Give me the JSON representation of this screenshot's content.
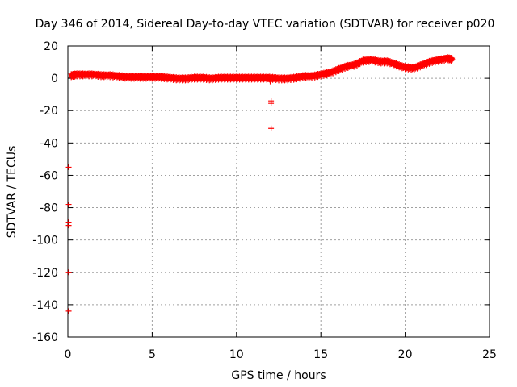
{
  "chart_data": {
    "type": "scatter",
    "title": "Day 346 of 2014, Sidereal Day-to-day VTEC variation (SDTVAR) for receiver p020",
    "xlabel": "GPS time / hours",
    "ylabel": "SDTVAR / TECUs",
    "xlim": [
      0,
      25
    ],
    "ylim": [
      -160,
      20
    ],
    "xticks": [
      0,
      5,
      10,
      15,
      20,
      25
    ],
    "yticks": [
      -160,
      -140,
      -120,
      -100,
      -80,
      -60,
      -40,
      -20,
      0,
      20
    ],
    "grid": true,
    "marker": "+",
    "color": "#ff0000",
    "series": [
      {
        "name": "SDTVAR",
        "trend": [
          [
            0.2,
            1.5
          ],
          [
            0.5,
            2.0
          ],
          [
            1.0,
            2.0
          ],
          [
            1.5,
            2.0
          ],
          [
            2.0,
            1.5
          ],
          [
            2.5,
            1.5
          ],
          [
            3.0,
            1.0
          ],
          [
            3.5,
            0.5
          ],
          [
            4.0,
            0.5
          ],
          [
            4.5,
            0.5
          ],
          [
            5.0,
            0.5
          ],
          [
            5.5,
            0.5
          ],
          [
            6.0,
            0.0
          ],
          [
            6.5,
            -0.5
          ],
          [
            7.0,
            -0.5
          ],
          [
            7.5,
            0.0
          ],
          [
            8.0,
            0.0
          ],
          [
            8.5,
            -0.5
          ],
          [
            9.0,
            0.0
          ],
          [
            9.5,
            0.0
          ],
          [
            10.0,
            0.0
          ],
          [
            10.5,
            0.0
          ],
          [
            11.0,
            0.0
          ],
          [
            11.5,
            0.0
          ],
          [
            12.0,
            0.0
          ],
          [
            12.5,
            -0.5
          ],
          [
            13.0,
            -0.5
          ],
          [
            13.5,
            0.0
          ],
          [
            14.0,
            1.0
          ],
          [
            14.5,
            1.0
          ],
          [
            15.0,
            2.0
          ],
          [
            15.5,
            3.0
          ],
          [
            16.0,
            5.0
          ],
          [
            16.5,
            7.0
          ],
          [
            17.0,
            8.0
          ],
          [
            17.5,
            10.5
          ],
          [
            18.0,
            11.0
          ],
          [
            18.5,
            10.0
          ],
          [
            19.0,
            10.0
          ],
          [
            19.5,
            8.0
          ],
          [
            20.0,
            6.5
          ],
          [
            20.5,
            6.0
          ],
          [
            21.0,
            8.0
          ],
          [
            21.5,
            10.0
          ],
          [
            22.0,
            11.0
          ],
          [
            22.5,
            12.0
          ],
          [
            22.8,
            11.5
          ]
        ],
        "outliers": [
          [
            12.0,
            -2.0
          ],
          [
            12.05,
            -14.0
          ],
          [
            12.05,
            -15.5
          ],
          [
            12.05,
            -31.0
          ],
          [
            0.05,
            -55.0
          ],
          [
            0.05,
            -78.0
          ],
          [
            0.05,
            -89.0
          ],
          [
            0.05,
            -91.0
          ],
          [
            0.05,
            -120.0
          ],
          [
            0.05,
            -144.0
          ]
        ]
      }
    ]
  }
}
